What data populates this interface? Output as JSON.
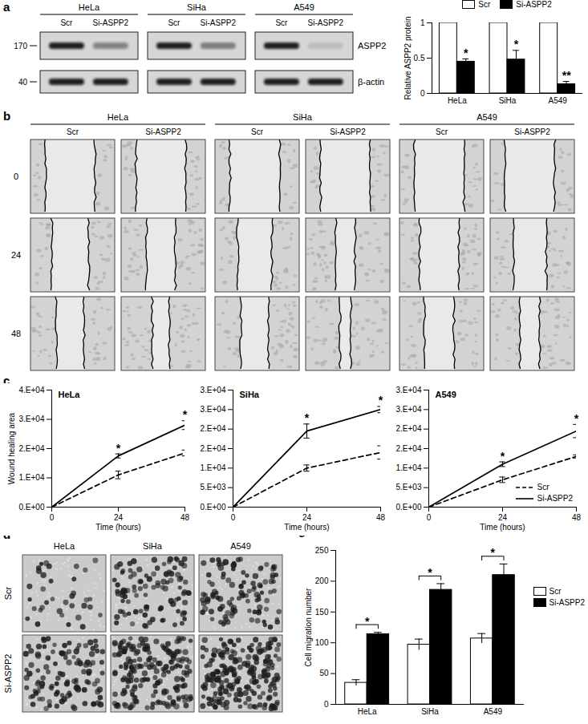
{
  "figure": {
    "panel_labels": [
      "a",
      "b",
      "c",
      "d",
      "e"
    ]
  },
  "western_blot": {
    "cell_lines": [
      "HeLa",
      "SiHa",
      "A549"
    ],
    "lanes": [
      "Scr",
      "Si-ASPP2"
    ],
    "proteins": [
      "ASPP2",
      "β-actin"
    ],
    "mw_markers": [
      170,
      40
    ]
  },
  "wound_images": {
    "cell_lines": [
      "HeLa",
      "SiHa",
      "A549"
    ],
    "lanes": [
      "Scr",
      "Si-ASPP2"
    ],
    "time_labels": [
      0,
      24,
      48
    ]
  },
  "transwell_images": {
    "cell_lines": [
      "HeLa",
      "SiHa",
      "A549"
    ],
    "conditions": [
      "Scr",
      "Si-ASPP2"
    ]
  },
  "chart_data": [
    {
      "type": "bar",
      "ylabel": "Relative ASPP2 protein",
      "categories": [
        "HeLa",
        "SiHa",
        "A549"
      ],
      "series": [
        {
          "name": "Scr",
          "color": "#ffffff",
          "values": [
            1,
            1,
            1
          ]
        },
        {
          "name": "Si-ASPP2",
          "color": "#000000",
          "values": [
            0.45,
            0.48,
            0.13
          ],
          "errors": [
            0.04,
            0.13,
            0.04
          ]
        }
      ],
      "ylim": [
        0,
        1
      ],
      "yticks": [
        0,
        0.5,
        1
      ],
      "legend": "top",
      "annotations": [
        {
          "category": "HeLa",
          "series": "Si-ASPP2",
          "text": "*"
        },
        {
          "category": "SiHa",
          "series": "Si-ASPP2",
          "text": "*"
        },
        {
          "category": "A549",
          "series": "Si-ASPP2",
          "text": "**"
        }
      ]
    },
    {
      "type": "line",
      "title": "HeLa",
      "xlabel": "Time (hours)",
      "ylabel": "Wound healing area",
      "x": [
        0,
        24,
        48
      ],
      "series": [
        {
          "name": "Scr",
          "color": "#000000",
          "line_style": "dashed",
          "values": [
            0,
            11000,
            18500
          ],
          "errors": [
            0,
            1300,
            1000
          ]
        },
        {
          "name": "Si-ASPP2",
          "color": "#000000",
          "line_style": "solid",
          "values": [
            0,
            17500,
            28000
          ],
          "errors": [
            0,
            700,
            1500
          ]
        }
      ],
      "xlim": [
        0,
        48
      ],
      "xticks": [
        0,
        24,
        48
      ],
      "ylim": [
        0,
        40000
      ],
      "yticks": [
        {
          "value": 0,
          "label": "0.E+00"
        },
        {
          "value": 10000,
          "label": "1.E+04"
        },
        {
          "value": 20000,
          "label": "2.E+04"
        },
        {
          "value": 30000,
          "label": "3.E+04"
        },
        {
          "value": 40000,
          "label": "4.E+04"
        }
      ],
      "annotations": [
        {
          "x": 24,
          "text": "*"
        },
        {
          "x": 48,
          "text": "*"
        }
      ]
    },
    {
      "type": "line",
      "title": "SiHa",
      "xlabel": "Time (hours)",
      "x": [
        0,
        24,
        48
      ],
      "series": [
        {
          "name": "Scr",
          "color": "#000000",
          "line_style": "dashed",
          "values": [
            0,
            10000,
            14000
          ],
          "errors": [
            0,
            800,
            1700
          ]
        },
        {
          "name": "Si-ASPP2",
          "color": "#000000",
          "line_style": "solid",
          "values": [
            0,
            19500,
            25000
          ],
          "errors": [
            0,
            1800,
            800
          ]
        }
      ],
      "xlim": [
        0,
        48
      ],
      "xticks": [
        0,
        24,
        48
      ],
      "ylim": [
        0,
        30000
      ],
      "yticks": [
        {
          "value": 0,
          "label": "0.E+00"
        },
        {
          "value": 5000,
          "label": "5.E+03"
        },
        {
          "value": 10000,
          "label": "1.E+04"
        },
        {
          "value": 15000,
          "label": "2.E+04"
        },
        {
          "value": 20000,
          "label": "2.E+04"
        },
        {
          "value": 25000,
          "label": "3.E+04"
        },
        {
          "value": 30000,
          "label": "3.E+04"
        }
      ],
      "annotations": [
        {
          "x": 24,
          "text": "*"
        },
        {
          "x": 48,
          "text": "*"
        }
      ]
    },
    {
      "type": "line",
      "title": "A549",
      "xlabel": "Time (hours)",
      "x": [
        0,
        24,
        48
      ],
      "series": [
        {
          "name": "Scr",
          "color": "#000000",
          "line_style": "dashed",
          "values": [
            0,
            7000,
            13000
          ],
          "errors": [
            0,
            700,
            400
          ]
        },
        {
          "name": "Si-ASPP2",
          "color": "#000000",
          "line_style": "solid",
          "values": [
            0,
            11000,
            19500
          ],
          "errors": [
            0,
            600,
            1700
          ]
        }
      ],
      "xlim": [
        0,
        48
      ],
      "xticks": [
        0,
        24,
        48
      ],
      "ylim": [
        0,
        30000
      ],
      "yticks": [
        {
          "value": 0,
          "label": "0.E+00"
        },
        {
          "value": 5000,
          "label": "5.E+03"
        },
        {
          "value": 10000,
          "label": "1.E+04"
        },
        {
          "value": 15000,
          "label": "2.E+04"
        },
        {
          "value": 20000,
          "label": "2.E+04"
        },
        {
          "value": 25000,
          "label": "3.E+04"
        },
        {
          "value": 30000,
          "label": "3.E+04"
        }
      ],
      "legend": "bottom-right",
      "annotations": [
        {
          "x": 24,
          "text": "*"
        },
        {
          "x": 48,
          "text": "*"
        }
      ]
    },
    {
      "type": "bar",
      "ylabel": "Cell migration number",
      "categories": [
        "HeLa",
        "SiHa",
        "A549"
      ],
      "series": [
        {
          "name": "Scr",
          "color": "#ffffff",
          "values": [
            35,
            97,
            107
          ],
          "errors": [
            5,
            9,
            8
          ]
        },
        {
          "name": "Si-ASPP2",
          "color": "#000000",
          "values": [
            114,
            186,
            210
          ],
          "errors": [
            3,
            10,
            18
          ]
        }
      ],
      "ylim": [
        0,
        250
      ],
      "yticks": [
        0,
        50,
        100,
        150,
        200,
        250
      ],
      "legend": "right",
      "annotations": [
        {
          "category": "HeLa",
          "text": "*"
        },
        {
          "category": "SiHa",
          "text": "*"
        },
        {
          "category": "A549",
          "text": "*"
        }
      ]
    }
  ]
}
